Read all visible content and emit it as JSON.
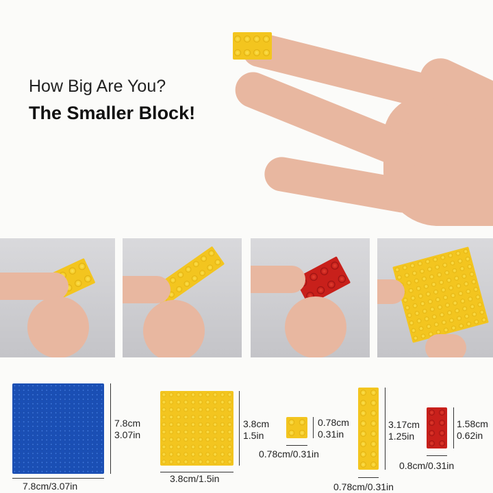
{
  "headline": {
    "question": "How Big Are You?",
    "tagline": "The Smaller Block!"
  },
  "colors": {
    "yellow": "#f3c51f",
    "red": "#c8201b",
    "blue": "#1a4fb5",
    "skin": "#e8b7a0"
  },
  "photos": [
    {
      "brick": "yellow 2x4"
    },
    {
      "brick": "yellow 1x8"
    },
    {
      "brick": "red 2x4"
    },
    {
      "brick": "yellow 10x10 plate"
    }
  ],
  "dimensions": [
    {
      "height_cm": "7.8cm",
      "height_in": "3.07in",
      "width": "7.8cm/3.07in"
    },
    {
      "height_cm": "3.8cm",
      "height_in": "1.5in",
      "width": "3.8cm/1.5in"
    },
    {
      "height_cm": "0.78cm",
      "height_in": "0.31in",
      "width": "0.78cm/0.31in"
    },
    {
      "height_cm": "3.17cm",
      "height_in": "1.25in",
      "width": "0.78cm/0.31in"
    },
    {
      "height_cm": "1.58cm",
      "height_in": "0.62in",
      "width": "0.8cm/0.31in"
    }
  ]
}
